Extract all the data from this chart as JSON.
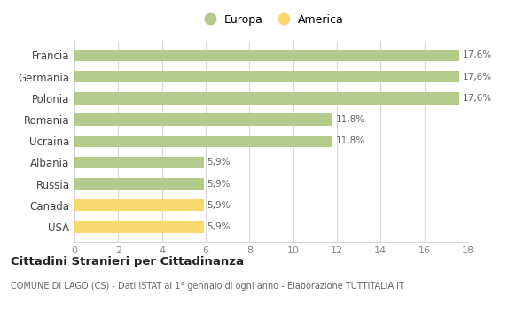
{
  "categories": [
    "USA",
    "Canada",
    "Russia",
    "Albania",
    "Ucraina",
    "Romania",
    "Polonia",
    "Germania",
    "Francia"
  ],
  "values": [
    5.9,
    5.9,
    5.9,
    5.9,
    11.8,
    11.8,
    17.6,
    17.6,
    17.6
  ],
  "colors": [
    "#f9d96e",
    "#f9d96e",
    "#b5cb8b",
    "#b5cb8b",
    "#b5cb8b",
    "#b5cb8b",
    "#b5cb8b",
    "#b5cb8b",
    "#b5cb8b"
  ],
  "labels": [
    "5,9%",
    "5,9%",
    "5,9%",
    "5,9%",
    "11,8%",
    "11,8%",
    "17,6%",
    "17,6%",
    "17,6%"
  ],
  "xlim": [
    0,
    18
  ],
  "xticks": [
    0,
    2,
    4,
    6,
    8,
    10,
    12,
    14,
    16,
    18
  ],
  "legend_europa_color": "#b5cb8b",
  "legend_america_color": "#f9d96e",
  "title": "Cittadini Stranieri per Cittadinanza",
  "subtitle": "COMUNE DI LAGO (CS) - Dati ISTAT al 1° gennaio di ogni anno - Elaborazione TUTTITALIA.IT",
  "background_color": "#ffffff",
  "grid_color": "#d8d8d8",
  "bar_height": 0.55
}
